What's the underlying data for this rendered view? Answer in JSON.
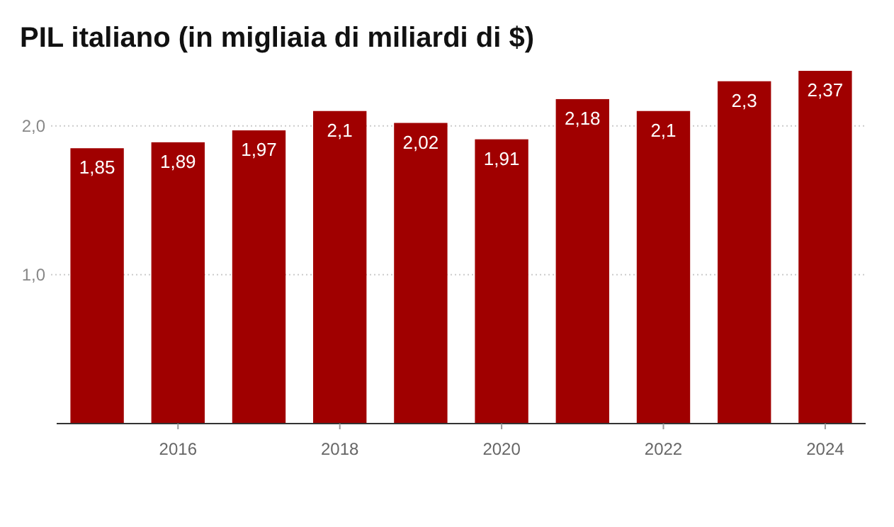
{
  "chart_data": {
    "type": "bar",
    "title": "PIL italiano (in migliaia di miliardi di $)",
    "x": [
      2015,
      2016,
      2017,
      2018,
      2019,
      2020,
      2021,
      2022,
      2023,
      2024
    ],
    "values": [
      1.85,
      1.89,
      1.97,
      2.1,
      2.02,
      1.91,
      2.18,
      2.1,
      2.3,
      2.37
    ],
    "value_labels": [
      "1,85",
      "1,89",
      "1,97",
      "2,1",
      "2,02",
      "1,91",
      "2,18",
      "2,1",
      "2,3",
      "2,37"
    ],
    "color": "#a00000",
    "xlim": [
      2014.5,
      2024.5
    ],
    "xticks": [
      2016,
      2018,
      2020,
      2022,
      2024
    ],
    "ylim": [
      0,
      2.37
    ],
    "yticks": [
      {
        "value": 1,
        "label": "1,0"
      },
      {
        "value": 2,
        "label": "2,0"
      }
    ],
    "grid": "y"
  }
}
